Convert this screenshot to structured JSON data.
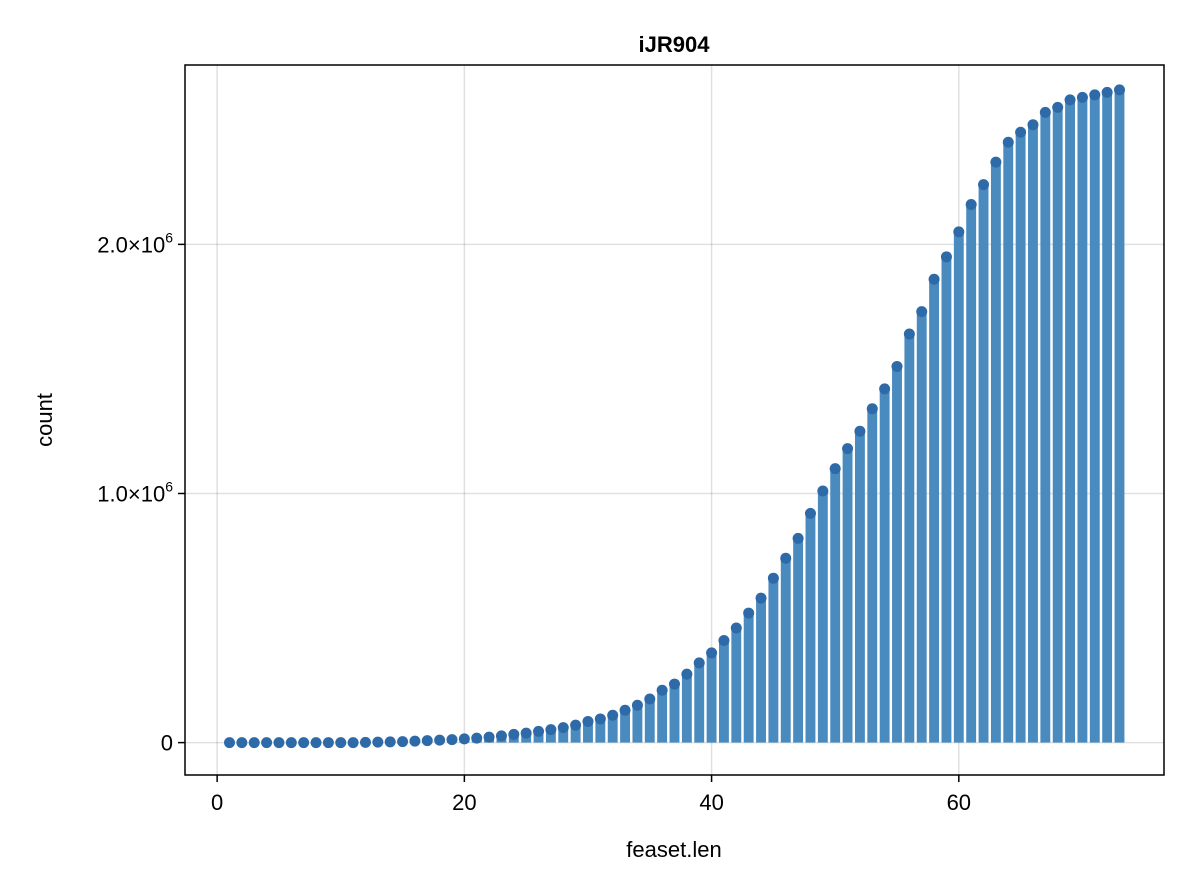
{
  "chart_data": {
    "type": "bar",
    "title": "iJR904",
    "xlabel": "feaset.len",
    "ylabel": "count",
    "xlim": [
      -2.6,
      76.6
    ],
    "ylim": [
      -130000,
      2720000
    ],
    "xticks": [
      {
        "value": 0,
        "label": "0"
      },
      {
        "value": 20,
        "label": "20"
      },
      {
        "value": 40,
        "label": "40"
      },
      {
        "value": 60,
        "label": "60"
      }
    ],
    "yticks": [
      {
        "value": 0,
        "mantissa": "0",
        "exponent": ""
      },
      {
        "value": 1000000,
        "mantissa": "1.0×10",
        "exponent": "6"
      },
      {
        "value": 2000000,
        "mantissa": "2.0×10",
        "exponent": "6"
      }
    ],
    "grid": true,
    "markers": true,
    "color": "#4a8bbf",
    "marker_color": "#2f6aa8",
    "x": [
      1,
      2,
      3,
      4,
      5,
      6,
      7,
      8,
      9,
      10,
      11,
      12,
      13,
      14,
      15,
      16,
      17,
      18,
      19,
      20,
      21,
      22,
      23,
      24,
      25,
      26,
      27,
      28,
      29,
      30,
      31,
      32,
      33,
      34,
      35,
      36,
      37,
      38,
      39,
      40,
      41,
      42,
      43,
      44,
      45,
      46,
      47,
      48,
      49,
      50,
      51,
      52,
      53,
      54,
      55,
      56,
      57,
      58,
      59,
      60,
      61,
      62,
      63,
      64,
      65,
      66,
      67,
      68,
      69,
      70,
      71,
      72,
      73
    ],
    "values": [
      0,
      0,
      0,
      0,
      0,
      0,
      0,
      0,
      0,
      0,
      0,
      1000,
      2000,
      3000,
      4000,
      6000,
      8000,
      10000,
      12000,
      15000,
      18000,
      22000,
      27000,
      33000,
      38000,
      45000,
      52000,
      60000,
      70000,
      85000,
      95000,
      110000,
      130000,
      150000,
      175000,
      210000,
      235000,
      275000,
      320000,
      360000,
      410000,
      460000,
      520000,
      580000,
      660000,
      740000,
      820000,
      920000,
      1010000,
      1100000,
      1180000,
      1250000,
      1340000,
      1420000,
      1510000,
      1640000,
      1730000,
      1860000,
      1950000,
      2050000,
      2160000,
      2240000,
      2330000,
      2410000,
      2450000,
      2480000,
      2530000,
      2550000,
      2580000,
      2590000,
      2600000,
      2610000,
      2620000
    ]
  }
}
